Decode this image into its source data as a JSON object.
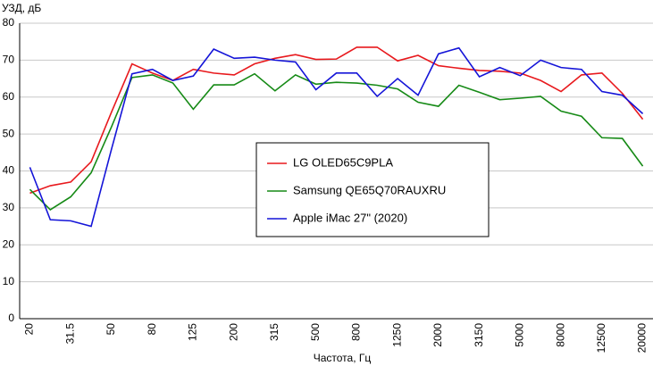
{
  "chart_data": {
    "type": "line",
    "y_label": "УЗД, дБ",
    "x_label": "Частота, Гц",
    "categories": [
      "20",
      null,
      "31.5",
      null,
      "50",
      null,
      "80",
      null,
      "125",
      null,
      "200",
      null,
      "315",
      null,
      "500",
      null,
      "800",
      null,
      "1250",
      null,
      "2000",
      null,
      "3150",
      null,
      "5000",
      null,
      "8000",
      null,
      "12500",
      null,
      "20000"
    ],
    "series": [
      {
        "name": "LG OLED65C9PLA",
        "color": "#e8191d",
        "values": [
          34,
          36,
          37,
          42.5,
          56,
          69,
          66.5,
          64.5,
          67.5,
          66.5,
          66,
          69,
          70.5,
          71.5,
          70.2,
          70.3,
          73.5,
          73.5,
          69.8,
          71.3,
          68.5,
          67.8,
          67.2,
          67,
          66.5,
          64.5,
          61.5,
          66,
          66.5,
          61,
          54
        ]
      },
      {
        "name": "Samsung QE65Q70RAUXRU",
        "color": "#168a16",
        "values": [
          35,
          29.5,
          33,
          39.5,
          52,
          65.3,
          66,
          63.8,
          56.7,
          63.3,
          63.3,
          66.3,
          61.7,
          66,
          63.5,
          64,
          63.8,
          63.2,
          62.2,
          58.6,
          57.5,
          63.2,
          61.3,
          59.3,
          59.7,
          60.2,
          56.2,
          54.8,
          49,
          48.8,
          41.3
        ]
      },
      {
        "name": "Apple iMac 27\" (2020)",
        "color": "#1414d8",
        "values": [
          41,
          26.8,
          26.5,
          25,
          46,
          66.3,
          67.5,
          64.5,
          65.7,
          73,
          70.5,
          70.8,
          70,
          69.5,
          62,
          66.5,
          66.5,
          60.2,
          65,
          60.5,
          71.7,
          73.3,
          65.5,
          68,
          65.8,
          70,
          68,
          67.5,
          61.5,
          60.5,
          55.5
        ]
      }
    ],
    "ylim": [
      0,
      80
    ],
    "yticks": [
      0,
      10,
      20,
      30,
      40,
      50,
      60,
      70,
      80
    ],
    "grid": true,
    "legend": "center"
  }
}
